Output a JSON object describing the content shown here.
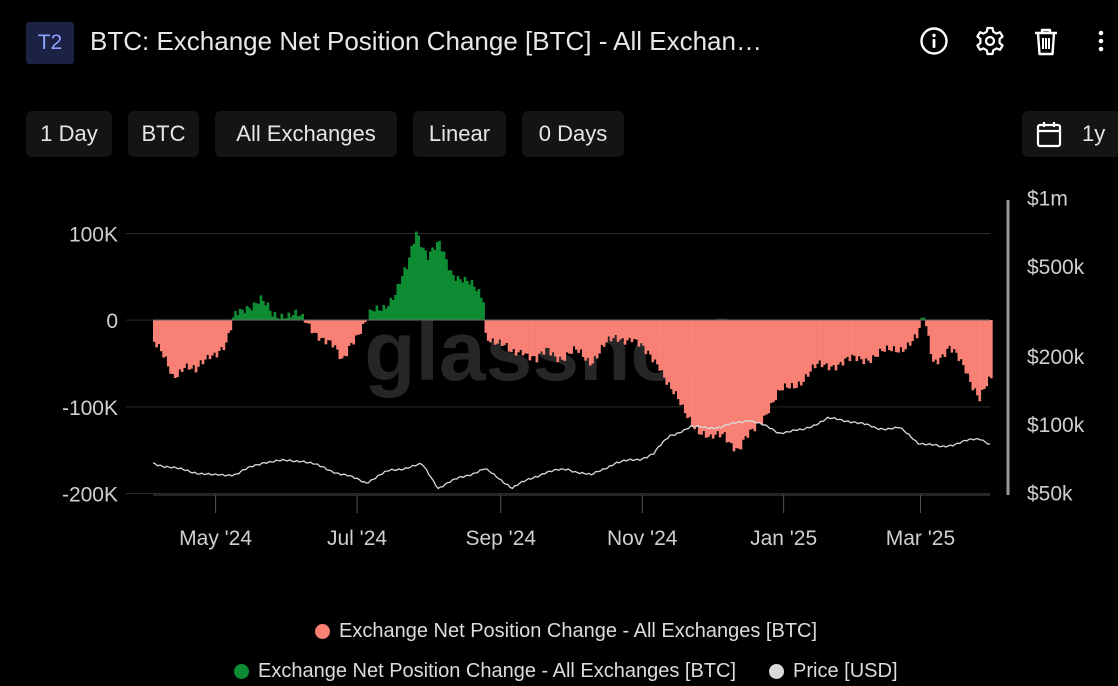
{
  "header": {
    "badge": "T2",
    "title": "BTC: Exchange Net Position Change [BTC] - All Exchan…",
    "icons": [
      "info-icon",
      "gear-icon",
      "trash-icon",
      "more-vertical-icon"
    ]
  },
  "toolbar": {
    "resolution": "1 Day",
    "asset": "BTC",
    "exchange": "All Exchanges",
    "scale": "Linear",
    "moving_average": "0 Days",
    "range": "1y"
  },
  "watermark": "glassnode",
  "chart_data": {
    "type": "area",
    "left_axis": {
      "ticks": [
        100000,
        0,
        -100000,
        -200000
      ],
      "tick_labels": [
        "100K",
        "0",
        "-100K",
        "-200K"
      ],
      "range": [
        -200000,
        100000
      ]
    },
    "right_axis": {
      "scale": "log",
      "ticks": [
        1000000,
        500000,
        200000,
        100000,
        50000
      ],
      "tick_labels": [
        "$1m",
        "$500k",
        "$200k",
        "$100k",
        "$50k"
      ],
      "range": [
        50000,
        1000000
      ]
    },
    "x_axis": {
      "start": "2024-04-04",
      "end": "2025-03-31",
      "ticks": [
        "2024-05-01",
        "2024-07-01",
        "2024-09-01",
        "2024-11-01",
        "2025-01-01",
        "2025-03-01"
      ],
      "tick_labels": [
        "May '24",
        "Jul '24",
        "Sep '24",
        "Nov '24",
        "Jan '25",
        "Mar '25"
      ]
    },
    "grid": true,
    "net_position_change_keyframes": [
      [
        "2024-04-04",
        -25000
      ],
      [
        "2024-04-08",
        -45000
      ],
      [
        "2024-04-12",
        -65000
      ],
      [
        "2024-04-17",
        -50000
      ],
      [
        "2024-04-22",
        -62000
      ],
      [
        "2024-04-28",
        -38000
      ],
      [
        "2024-05-05",
        -30000
      ],
      [
        "2024-05-09",
        5000
      ],
      [
        "2024-05-14",
        18000
      ],
      [
        "2024-05-20",
        22000
      ],
      [
        "2024-05-25",
        5000
      ],
      [
        "2024-05-30",
        9000
      ],
      [
        "2024-06-04",
        5000
      ],
      [
        "2024-06-09",
        -5000
      ],
      [
        "2024-06-14",
        -15000
      ],
      [
        "2024-06-20",
        -32000
      ],
      [
        "2024-06-24",
        -48000
      ],
      [
        "2024-06-28",
        -22000
      ],
      [
        "2024-07-03",
        -10000
      ],
      [
        "2024-07-07",
        8000
      ],
      [
        "2024-07-12",
        18000
      ],
      [
        "2024-07-17",
        30000
      ],
      [
        "2024-07-22",
        58000
      ],
      [
        "2024-07-26",
        105000
      ],
      [
        "2024-07-31",
        75000
      ],
      [
        "2024-08-05",
        85000
      ],
      [
        "2024-08-10",
        58000
      ],
      [
        "2024-08-15",
        48000
      ],
      [
        "2024-08-20",
        35000
      ],
      [
        "2024-08-24",
        25000
      ],
      [
        "2024-08-25",
        -15000
      ],
      [
        "2024-08-30",
        -25000
      ],
      [
        "2024-09-05",
        -40000
      ],
      [
        "2024-09-10",
        -32000
      ],
      [
        "2024-09-16",
        -48000
      ],
      [
        "2024-09-21",
        -35000
      ],
      [
        "2024-09-27",
        -42000
      ],
      [
        "2024-10-03",
        -38000
      ],
      [
        "2024-10-09",
        -46000
      ],
      [
        "2024-10-15",
        -30000
      ],
      [
        "2024-10-21",
        -22000
      ],
      [
        "2024-10-27",
        -18000
      ],
      [
        "2024-11-02",
        -40000
      ],
      [
        "2024-11-08",
        -50000
      ],
      [
        "2024-11-13",
        -80000
      ],
      [
        "2024-11-18",
        -105000
      ],
      [
        "2024-11-25",
        -125000
      ],
      [
        "2024-11-30",
        -140000
      ],
      [
        "2024-12-06",
        -130000
      ],
      [
        "2024-12-12",
        -150000
      ],
      [
        "2024-12-18",
        -130000
      ],
      [
        "2024-12-25",
        -100000
      ],
      [
        "2024-12-30",
        -85000
      ],
      [
        "2025-01-07",
        -70000
      ],
      [
        "2025-01-15",
        -55000
      ],
      [
        "2025-01-21",
        -50000
      ],
      [
        "2025-01-29",
        -48000
      ],
      [
        "2025-02-06",
        -42000
      ],
      [
        "2025-02-14",
        -38000
      ],
      [
        "2025-02-22",
        -28000
      ],
      [
        "2025-02-27",
        -22000
      ],
      [
        "2025-03-02",
        3000
      ],
      [
        "2025-03-06",
        -45000
      ],
      [
        "2025-03-13",
        -35000
      ],
      [
        "2025-03-20",
        -55000
      ],
      [
        "2025-03-26",
        -90000
      ],
      [
        "2025-03-31",
        -70000
      ]
    ],
    "price_keyframes": [
      [
        "2024-04-04",
        68000
      ],
      [
        "2024-04-15",
        64000
      ],
      [
        "2024-04-30",
        60000
      ],
      [
        "2024-05-10",
        61000
      ],
      [
        "2024-05-22",
        69000
      ],
      [
        "2024-06-07",
        70000
      ],
      [
        "2024-06-24",
        61000
      ],
      [
        "2024-07-05",
        56000
      ],
      [
        "2024-07-15",
        63000
      ],
      [
        "2024-07-29",
        67000
      ],
      [
        "2024-08-05",
        53000
      ],
      [
        "2024-08-15",
        59000
      ],
      [
        "2024-08-25",
        64000
      ],
      [
        "2024-09-06",
        53000
      ],
      [
        "2024-09-20",
        62000
      ],
      [
        "2024-09-30",
        64000
      ],
      [
        "2024-10-10",
        60000
      ],
      [
        "2024-10-20",
        68000
      ],
      [
        "2024-10-31",
        71000
      ],
      [
        "2024-11-06",
        75000
      ],
      [
        "2024-11-13",
        90000
      ],
      [
        "2024-11-22",
        98000
      ],
      [
        "2024-12-05",
        98000
      ],
      [
        "2024-12-17",
        106000
      ],
      [
        "2024-12-30",
        93000
      ],
      [
        "2025-01-09",
        95000
      ],
      [
        "2025-01-20",
        107000
      ],
      [
        "2025-01-31",
        104000
      ],
      [
        "2025-02-10",
        97000
      ],
      [
        "2025-02-20",
        97000
      ],
      [
        "2025-02-28",
        84000
      ],
      [
        "2025-03-10",
        80000
      ],
      [
        "2025-03-20",
        85000
      ],
      [
        "2025-03-27",
        87000
      ],
      [
        "2025-03-31",
        83000
      ]
    ],
    "series": [
      {
        "name": "Exchange Net Position Change - All Exchanges [BTC]",
        "color": "#f88074",
        "sign": "negative"
      },
      {
        "name": "Exchange Net Position Change - All Exchanges [BTC]",
        "color": "#0e8c33",
        "sign": "positive"
      },
      {
        "name": "Price [USD]",
        "color": "#d9d9d9"
      }
    ]
  }
}
